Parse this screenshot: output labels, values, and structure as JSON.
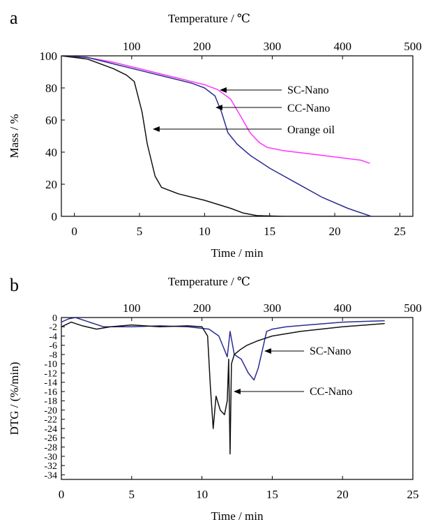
{
  "chart_data": [
    {
      "panel": "a",
      "type": "line",
      "xlabel": "Time / min",
      "x2label": "Temperature / ℃",
      "ylabel": "Mass / %",
      "xlim": [
        -1,
        26
      ],
      "x2lim": [
        0,
        500
      ],
      "ylim": [
        0,
        100
      ],
      "xticks": [
        0,
        5,
        10,
        15,
        20,
        25
      ],
      "x2ticks": [
        100,
        200,
        300,
        400,
        500
      ],
      "yticks": [
        0,
        20,
        40,
        60,
        80,
        100
      ],
      "grid": false,
      "colors": {
        "SC-Nano": "#ff33ff",
        "CC-Nano": "#2b2b8f",
        "Orange oil": "#111111"
      },
      "series": [
        {
          "name": "SC-Nano",
          "x": [
            -1,
            1,
            3,
            5,
            7,
            9,
            10,
            11,
            12,
            12.8,
            13.5,
            14.2,
            14.8,
            16,
            18,
            20,
            22,
            22.7
          ],
          "y": [
            100,
            99,
            96,
            92,
            88,
            84,
            82,
            79,
            73,
            62,
            52,
            46,
            43,
            41,
            39,
            37,
            35,
            33
          ]
        },
        {
          "name": "CC-Nano",
          "x": [
            -1,
            1,
            3,
            5,
            7,
            9,
            10,
            10.8,
            11.3,
            11.8,
            12.5,
            13.5,
            15,
            17,
            19,
            21,
            22.8
          ],
          "y": [
            100,
            99,
            95,
            91,
            87,
            83,
            80,
            75,
            65,
            52,
            45,
            38,
            30,
            21,
            12,
            5,
            0
          ]
        },
        {
          "name": "Orange oil",
          "x": [
            -1,
            1,
            3,
            4,
            4.6,
            5.2,
            5.6,
            6.2,
            6.7,
            8,
            10,
            12,
            13,
            14,
            16,
            18,
            20,
            22.5
          ],
          "y": [
            100,
            98,
            92,
            88,
            84,
            65,
            45,
            25,
            18,
            14,
            10,
            5,
            2,
            0.5,
            0,
            0,
            0,
            0
          ]
        }
      ],
      "annotations": [
        "SC-Nano",
        "CC-Nano",
        "Orange oil"
      ]
    },
    {
      "panel": "b",
      "type": "line",
      "xlabel": "Time / min",
      "x2label": "Temperature / ℃",
      "ylabel": "DTG / (%/min)",
      "xlim": [
        0,
        25
      ],
      "x2lim": [
        0,
        500
      ],
      "ylim": [
        -35,
        0
      ],
      "xticks": [
        0,
        5,
        10,
        15,
        20,
        25
      ],
      "x2ticks": [
        100,
        200,
        300,
        400,
        500
      ],
      "yticks": [
        0,
        -2,
        -4,
        -6,
        -8,
        -10,
        -12,
        -14,
        -16,
        -18,
        -20,
        -22,
        -24,
        -26,
        -28,
        -30,
        -32,
        -34
      ],
      "grid": false,
      "colors": {
        "SC-Nano": "#2b2b8f",
        "CC-Nano": "#111111"
      },
      "series": [
        {
          "name": "SC-Nano",
          "x": [
            0,
            0.5,
            1,
            2,
            3,
            5,
            7,
            9,
            10.5,
            11.2,
            11.6,
            11.8,
            12.0,
            12.3,
            12.8,
            13.3,
            13.7,
            14.0,
            14.3,
            14.6,
            15,
            16,
            18,
            20,
            22,
            23
          ],
          "y": [
            -1,
            -0.3,
            0,
            -1,
            -2,
            -2,
            -1.8,
            -2,
            -2.5,
            -4,
            -7,
            -8.5,
            -3,
            -8,
            -9,
            -12,
            -13.5,
            -11,
            -7,
            -3,
            -2.5,
            -2,
            -1.5,
            -1,
            -0.8,
            -0.7
          ]
        },
        {
          "name": "CC-Nano",
          "x": [
            0,
            0.7,
            1.5,
            2.5,
            3.5,
            5,
            7,
            9,
            10,
            10.4,
            10.6,
            10.8,
            11,
            11.3,
            11.6,
            11.8,
            11.9,
            12.0,
            12.1,
            12.3,
            12.7,
            13.2,
            14,
            15,
            17,
            20,
            23
          ],
          "y": [
            -2,
            -1,
            -1.8,
            -2.5,
            -2,
            -1.6,
            -2,
            -1.8,
            -2,
            -4,
            -15,
            -24,
            -17,
            -20,
            -21,
            -18,
            -9,
            -29.5,
            -10,
            -8,
            -7,
            -6,
            -5,
            -4,
            -3,
            -2,
            -1.3
          ]
        }
      ],
      "annotations": [
        "SC-Nano",
        "CC-Nano"
      ]
    }
  ]
}
